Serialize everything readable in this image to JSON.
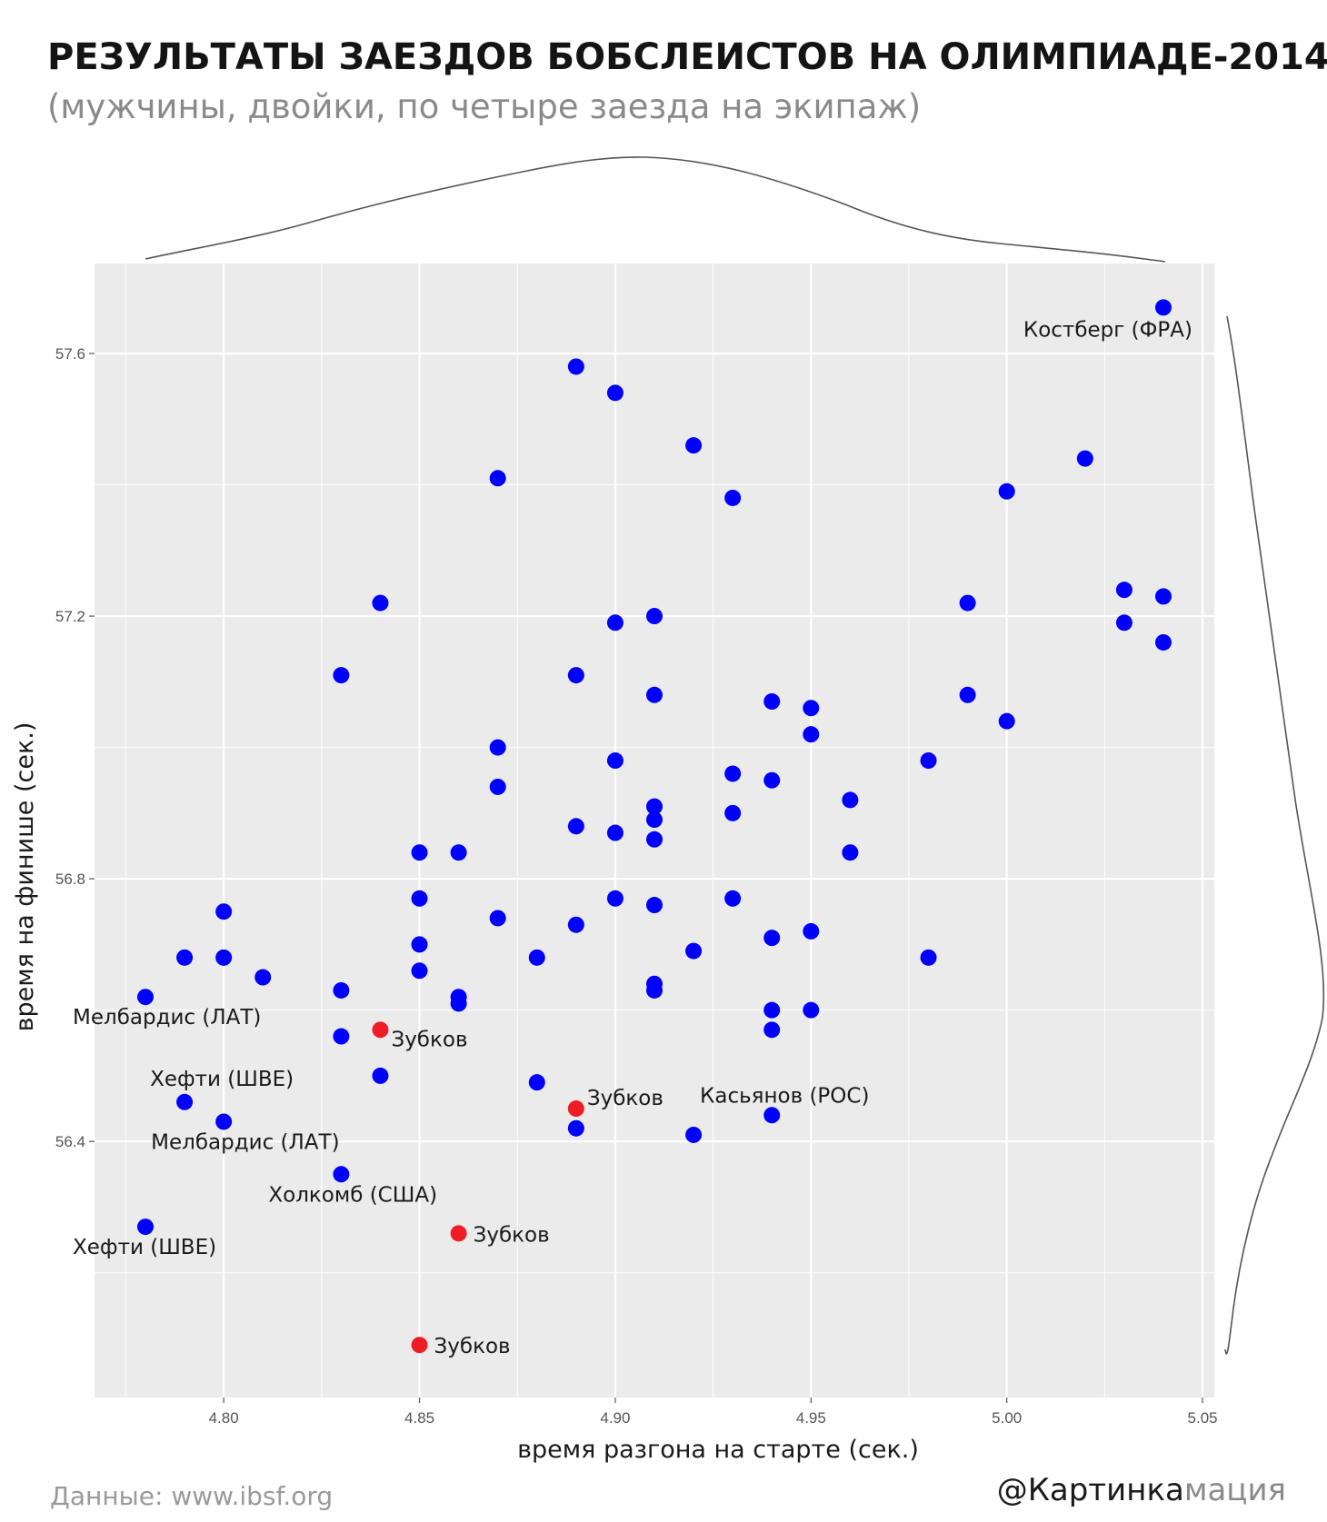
{
  "header": {
    "title": "РЕЗУЛЬТАТЫ ЗАЕЗДОВ БОБСЛЕИСТОВ НА ОЛИМПИАДЕ-2014",
    "subtitle": "(мужчины, двойки, по четыре заезда на экипаж)"
  },
  "footer": {
    "source": "Данные: www.ibsf.org",
    "brand_strong": "@Картинка",
    "brand_light": "мация"
  },
  "colors": {
    "panel": "#ebebeb",
    "grid": "#ffffff",
    "point": "#0000ff",
    "highlight": "#ee1c25",
    "density": "#555555"
  },
  "chart_data": {
    "type": "scatter",
    "title": "РЕЗУЛЬТАТЫ ЗАЕЗДОВ БОБСЛЕИСТОВ НА ОЛИМПИАДЕ-2014",
    "subtitle": "(мужчины, двойки, по четыре заезда на экипаж)",
    "xlabel": "время разгона на старте (сек.)",
    "ylabel": "время на финише (сек.)",
    "xlim": [
      4.767,
      5.053
    ],
    "ylim": [
      56.01,
      57.737
    ],
    "x_ticks": [
      4.8,
      4.85,
      4.9,
      4.95,
      5.0,
      5.05
    ],
    "x_tick_labels": [
      "4.80",
      "4.85",
      "4.90",
      "4.95",
      "5.00",
      "5.05"
    ],
    "y_ticks": [
      56.4,
      56.8,
      57.2,
      57.6
    ],
    "y_tick_labels": [
      "56.4",
      "56.8",
      "57.2",
      "57.6"
    ],
    "grid": true,
    "marginal_density": true,
    "series": [
      {
        "color": "#0000ff",
        "points": [
          [
            5.04,
            57.67
          ],
          [
            4.89,
            57.58
          ],
          [
            4.9,
            57.54
          ],
          [
            4.92,
            57.46
          ],
          [
            5.02,
            57.44
          ],
          [
            4.87,
            57.41
          ],
          [
            5.0,
            57.39
          ],
          [
            4.93,
            57.38
          ],
          [
            5.03,
            57.24
          ],
          [
            5.04,
            57.23
          ],
          [
            4.84,
            57.22
          ],
          [
            4.99,
            57.22
          ],
          [
            4.91,
            57.2
          ],
          [
            4.9,
            57.19
          ],
          [
            5.03,
            57.19
          ],
          [
            5.04,
            57.16
          ],
          [
            4.83,
            57.11
          ],
          [
            4.89,
            57.11
          ],
          [
            4.91,
            57.08
          ],
          [
            4.99,
            57.08
          ],
          [
            4.94,
            57.07
          ],
          [
            4.95,
            57.06
          ],
          [
            5.0,
            57.04
          ],
          [
            4.95,
            57.02
          ],
          [
            4.87,
            57.0
          ],
          [
            4.9,
            56.98
          ],
          [
            4.98,
            56.98
          ],
          [
            4.93,
            56.96
          ],
          [
            4.94,
            56.95
          ],
          [
            4.87,
            56.94
          ],
          [
            4.96,
            56.92
          ],
          [
            4.91,
            56.91
          ],
          [
            4.93,
            56.9
          ],
          [
            4.91,
            56.89
          ],
          [
            4.89,
            56.88
          ],
          [
            4.9,
            56.87
          ],
          [
            4.91,
            56.86
          ],
          [
            4.85,
            56.84
          ],
          [
            4.86,
            56.84
          ],
          [
            4.96,
            56.84
          ],
          [
            4.85,
            56.77
          ],
          [
            4.9,
            56.77
          ],
          [
            4.93,
            56.77
          ],
          [
            4.91,
            56.76
          ],
          [
            4.8,
            56.75
          ],
          [
            4.87,
            56.74
          ],
          [
            4.89,
            56.73
          ],
          [
            4.95,
            56.72
          ],
          [
            4.94,
            56.71
          ],
          [
            4.85,
            56.7
          ],
          [
            4.92,
            56.69
          ],
          [
            4.79,
            56.68
          ],
          [
            4.8,
            56.68
          ],
          [
            4.88,
            56.68
          ],
          [
            4.98,
            56.68
          ],
          [
            4.85,
            56.66
          ],
          [
            4.81,
            56.65
          ],
          [
            4.91,
            56.64
          ],
          [
            4.83,
            56.63
          ],
          [
            4.91,
            56.63
          ],
          [
            4.78,
            56.62
          ],
          [
            4.86,
            56.62
          ],
          [
            4.86,
            56.61
          ],
          [
            4.94,
            56.6
          ],
          [
            4.95,
            56.6
          ],
          [
            4.94,
            56.57
          ],
          [
            4.83,
            56.56
          ],
          [
            4.84,
            56.5
          ],
          [
            4.88,
            56.49
          ],
          [
            4.79,
            56.46
          ],
          [
            4.94,
            56.44
          ],
          [
            4.8,
            56.43
          ],
          [
            4.89,
            56.42
          ],
          [
            4.92,
            56.41
          ],
          [
            4.83,
            56.35
          ],
          [
            4.78,
            56.27
          ]
        ]
      },
      {
        "color": "#ee1c25",
        "points": [
          [
            4.84,
            56.57
          ],
          [
            4.89,
            56.45
          ],
          [
            4.86,
            56.26
          ],
          [
            4.85,
            56.09
          ]
        ]
      }
    ],
    "annotations": [
      {
        "text": "Костберг (ФРА)",
        "x": 5.04,
        "y": 57.67,
        "anchor": "below-left"
      },
      {
        "text": "Мелбардис (ЛАТ)",
        "x": 4.78,
        "y": 56.62,
        "anchor": "below-right"
      },
      {
        "text": "Зубков",
        "x": 4.84,
        "y": 56.57,
        "anchor": "right-below"
      },
      {
        "text": "Хефти (ШВЕ)",
        "x": 4.79,
        "y": 56.46,
        "anchor": "above-right"
      },
      {
        "text": "Мелбардис (ЛАТ)",
        "x": 4.8,
        "y": 56.43,
        "anchor": "below-right"
      },
      {
        "text": "Зубков",
        "x": 4.89,
        "y": 56.45,
        "anchor": "right-above"
      },
      {
        "text": "Касьянов (РОС)",
        "x": 4.94,
        "y": 56.44,
        "anchor": "above"
      },
      {
        "text": "Холкомб (США)",
        "x": 4.83,
        "y": 56.35,
        "anchor": "below-right"
      },
      {
        "text": "Хефти (ШВЕ)",
        "x": 4.78,
        "y": 56.27,
        "anchor": "below-right"
      },
      {
        "text": "Зубков",
        "x": 4.86,
        "y": 56.26,
        "anchor": "right"
      },
      {
        "text": "Зубков",
        "x": 4.85,
        "y": 56.09,
        "anchor": "right"
      }
    ]
  }
}
